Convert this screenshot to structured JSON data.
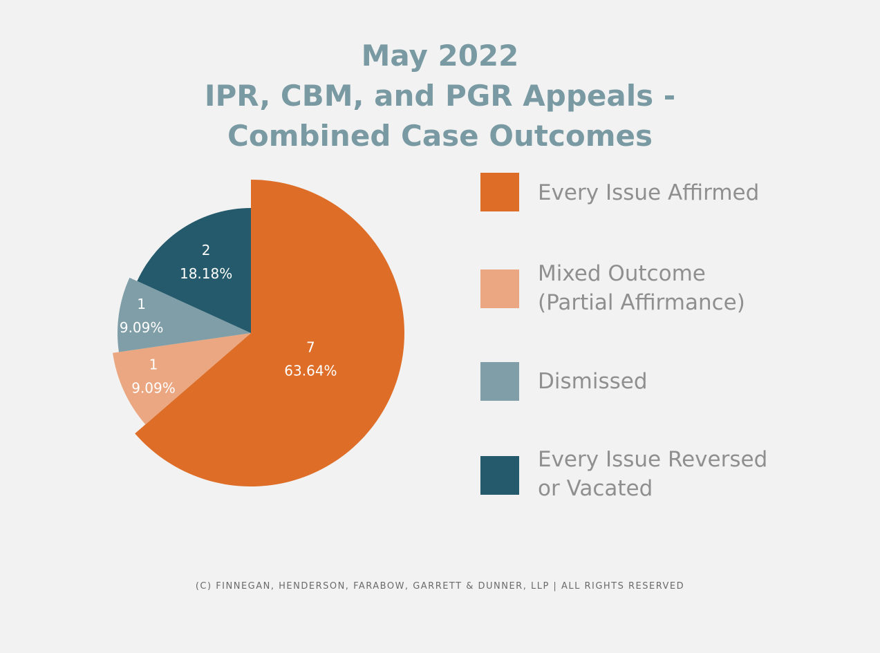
{
  "chart_data": {
    "type": "pie",
    "title_lines": [
      "May 2022",
      "IPR, CBM, and PGR Appeals -",
      "Combined Case Outcomes"
    ],
    "slices": [
      {
        "name": "Every Issue Affirmed",
        "count": 7,
        "percent_label": "63.64%",
        "value": 63.64,
        "color": "#dd6d27"
      },
      {
        "name": "Mixed Outcome (Partial Affirmance)",
        "legend_lines": [
          "Mixed Outcome",
          "(Partial Affirmance)"
        ],
        "count": 1,
        "percent_label": "9.09%",
        "value": 9.09,
        "color": "#eba781"
      },
      {
        "name": "Dismissed",
        "count": 1,
        "percent_label": "9.09%",
        "value": 9.09,
        "color": "#7f9ea7"
      },
      {
        "name": "Every Issue Reversed or Vacated",
        "legend_lines": [
          "Every Issue Reversed",
          "or Vacated"
        ],
        "count": 2,
        "percent_label": "18.18%",
        "value": 18.18,
        "color": "#245a6b"
      }
    ],
    "legend_placement": "right"
  },
  "footer": "(c) Finnegan, Henderson, Farabow, Garrett & Dunner, LLP | All Rights Reserved"
}
